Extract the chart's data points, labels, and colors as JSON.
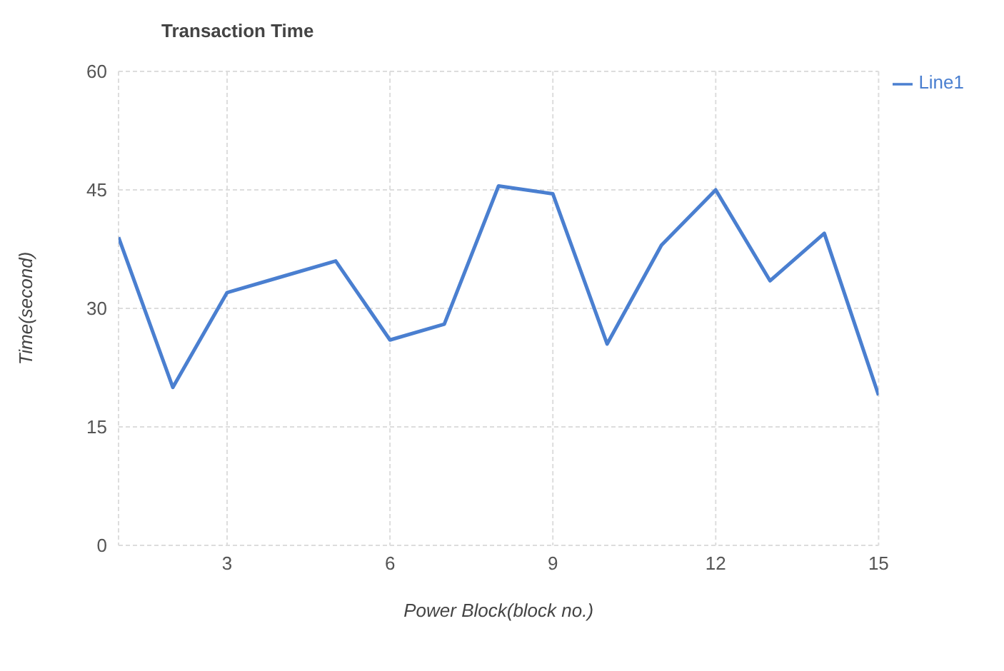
{
  "chart_data": {
    "type": "line",
    "title": "Transaction Time",
    "xlabel": "Power Block(block no.)",
    "ylabel": "Time(second)",
    "x": [
      1,
      2,
      3,
      4,
      5,
      6,
      7,
      8,
      9,
      10,
      11,
      12,
      13,
      14,
      15
    ],
    "series": [
      {
        "name": "Line1",
        "color": "#4a7fd0",
        "values": [
          39,
          20,
          32,
          34,
          36,
          26,
          28,
          45.5,
          44.5,
          25.5,
          38,
          45,
          33.5,
          39.5,
          19
        ]
      }
    ],
    "xlim": [
      1,
      15
    ],
    "xticks": [
      3,
      6,
      9,
      12,
      15
    ],
    "ylim": [
      0,
      60
    ],
    "yticks": [
      0,
      15,
      30,
      45,
      60
    ],
    "grid": true,
    "legend": "top right",
    "marker": "none",
    "line_style": "solid"
  }
}
